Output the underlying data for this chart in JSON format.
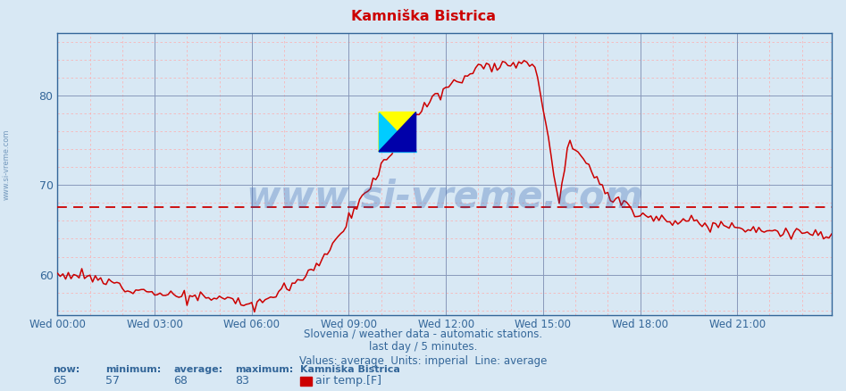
{
  "title": "Kamniška Bistrica",
  "title_color": "#cc0000",
  "bg_color": "#d8e8f4",
  "plot_bg_color": "#d8e8f4",
  "line_color": "#cc0000",
  "avg_line_color": "#cc0000",
  "avg_line_value": 67.5,
  "grid_color_major": "#8899bb",
  "grid_color_minor": "#ffaaaa",
  "ylim": [
    55.5,
    87
  ],
  "yticks": [
    60,
    70,
    80
  ],
  "xtick_labels": [
    "Wed 00:00",
    "Wed 03:00",
    "Wed 06:00",
    "Wed 09:00",
    "Wed 12:00",
    "Wed 15:00",
    "Wed 18:00",
    "Wed 21:00"
  ],
  "subtitle_lines": [
    "Slovenia / weather data - automatic stations.",
    "last day / 5 minutes.",
    "Values: average  Units: imperial  Line: average"
  ],
  "footer_labels": [
    "now:",
    "minimum:",
    "average:",
    "maximum:",
    "Kamniška Bistrica"
  ],
  "footer_values": [
    "65",
    "57",
    "68",
    "83"
  ],
  "footer_series": "air temp.[F]",
  "footer_color": "#336699",
  "watermark": "www.si-vreme.com",
  "left_label": "www.si-vreme.com",
  "n_points": 288
}
